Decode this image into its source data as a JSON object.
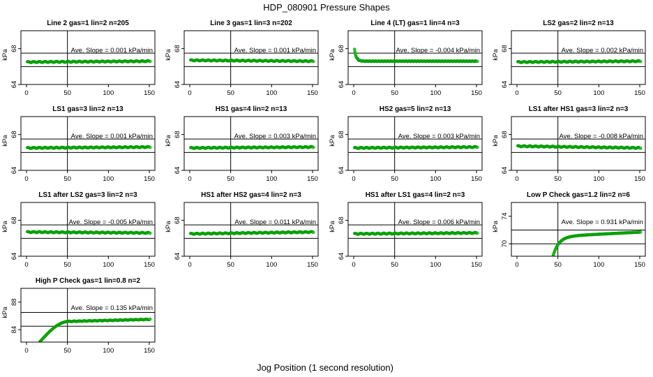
{
  "figure": {
    "title": "HDP_080901  Pressure Shapes",
    "xlabel": "Jog Position (1 second resolution)"
  },
  "colors": {
    "points": "#22cc22",
    "point_edge": "#009900",
    "axes": "#000000"
  },
  "chart_data": [
    {
      "type": "scatter",
      "title": "Line 2 gas=1 lin=2 n=205",
      "ylabel": "kPa",
      "xlim": [
        0,
        150
      ],
      "ylim": [
        64,
        70
      ],
      "xticks": [
        "0",
        "50",
        "100",
        "150"
      ],
      "yticks": [
        "64",
        "68"
      ],
      "hlines": [
        66,
        67.5
      ],
      "vline": 50,
      "annotation": "Ave. Slope =  0.001  kPa/min",
      "profile": {
        "kind": "flat",
        "start": 1,
        "end": 151,
        "y0": 66.5,
        "y1": 66.6
      }
    },
    {
      "type": "scatter",
      "title": "Line 3 gas=1 lin=3 n=202",
      "ylabel": "kPa",
      "xlim": [
        0,
        150
      ],
      "ylim": [
        64,
        70
      ],
      "xticks": [
        "0",
        "50",
        "100",
        "150"
      ],
      "yticks": [
        "64",
        "68"
      ],
      "hlines": [
        66,
        67.5
      ],
      "vline": 50,
      "annotation": "Ave. Slope =  0.001  kPa/min",
      "profile": {
        "kind": "flat",
        "start": 1,
        "end": 151,
        "y0": 66.7,
        "y1": 66.6
      }
    },
    {
      "type": "scatter",
      "title": "Line 4 (LT) gas=1 lin=4 n=3",
      "ylabel": "kPa",
      "xlim": [
        0,
        150
      ],
      "ylim": [
        64,
        70
      ],
      "xticks": [
        "0",
        "50",
        "100",
        "150"
      ],
      "yticks": [
        "64",
        "68"
      ],
      "hlines": [
        66,
        67.5
      ],
      "vline": 50,
      "annotation": "Ave. Slope =  -0.004  kPa/min",
      "profile": {
        "kind": "drop",
        "start": 1,
        "end": 151,
        "y0": 67.9,
        "y1": 66.6
      }
    },
    {
      "type": "scatter",
      "title": "LS2 gas=2 lin=2 n=13",
      "ylabel": "kPa",
      "xlim": [
        0,
        150
      ],
      "ylim": [
        64,
        70
      ],
      "xticks": [
        "0",
        "50",
        "100",
        "150"
      ],
      "yticks": [
        "64",
        "68"
      ],
      "hlines": [
        66,
        67.5
      ],
      "vline": 50,
      "annotation": "Ave. Slope =  0.002  kPa/min",
      "profile": {
        "kind": "flat",
        "start": 1,
        "end": 151,
        "y0": 66.5,
        "y1": 66.6
      }
    },
    {
      "type": "scatter",
      "title": "LS1 gas=3 lin=2 n=13",
      "ylabel": "kPa",
      "xlim": [
        0,
        150
      ],
      "ylim": [
        64,
        70
      ],
      "xticks": [
        "0",
        "50",
        "100",
        "150"
      ],
      "yticks": [
        "64",
        "68"
      ],
      "hlines": [
        66,
        67.5
      ],
      "vline": 50,
      "annotation": "Ave. Slope =  0.001  kPa/min",
      "profile": {
        "kind": "flat",
        "start": 1,
        "end": 151,
        "y0": 66.5,
        "y1": 66.6
      }
    },
    {
      "type": "scatter",
      "title": "HS1 gas=4 lin=2 n=13",
      "ylabel": "kPa",
      "xlim": [
        0,
        150
      ],
      "ylim": [
        64,
        70
      ],
      "xticks": [
        "0",
        "50",
        "100",
        "150"
      ],
      "yticks": [
        "64",
        "68"
      ],
      "hlines": [
        66,
        67.5
      ],
      "vline": 50,
      "annotation": "Ave. Slope =  0.003  kPa/min",
      "profile": {
        "kind": "flat",
        "start": 1,
        "end": 151,
        "y0": 66.5,
        "y1": 66.6
      }
    },
    {
      "type": "scatter",
      "title": "HS2 gas=5 lin=2 n=13",
      "ylabel": "kPa",
      "xlim": [
        0,
        150
      ],
      "ylim": [
        64,
        70
      ],
      "xticks": [
        "0",
        "50",
        "100",
        "150"
      ],
      "yticks": [
        "64",
        "68"
      ],
      "hlines": [
        66,
        67.5
      ],
      "vline": 50,
      "annotation": "Ave. Slope =  0.003  kPa/min",
      "profile": {
        "kind": "flat",
        "start": 1,
        "end": 151,
        "y0": 66.5,
        "y1": 66.6
      }
    },
    {
      "type": "scatter",
      "title": "LS1 after HS1 gas=3 lin=2 n=3",
      "ylabel": "kPa",
      "xlim": [
        0,
        150
      ],
      "ylim": [
        64,
        70
      ],
      "xticks": [
        "0",
        "50",
        "100",
        "150"
      ],
      "yticks": [
        "64",
        "68"
      ],
      "hlines": [
        66,
        67.5
      ],
      "vline": 50,
      "annotation": "Ave. Slope =  -0.008  kPa/min",
      "profile": {
        "kind": "flat",
        "start": 1,
        "end": 151,
        "y0": 66.7,
        "y1": 66.5
      }
    },
    {
      "type": "scatter",
      "title": "LS1 after LS2 gas=3 lin=2 n=3",
      "ylabel": "kPa",
      "xlim": [
        0,
        150
      ],
      "ylim": [
        64,
        70
      ],
      "xticks": [
        "0",
        "50",
        "100",
        "150"
      ],
      "yticks": [
        "64",
        "68"
      ],
      "hlines": [
        66,
        67.5
      ],
      "vline": 50,
      "annotation": "Ave. Slope =  -0.005  kPa/min",
      "profile": {
        "kind": "flat",
        "start": 1,
        "end": 151,
        "y0": 66.7,
        "y1": 66.6
      }
    },
    {
      "type": "scatter",
      "title": "HS1 after HS2 gas=4 lin=2 n=3",
      "ylabel": "kPa",
      "xlim": [
        0,
        150
      ],
      "ylim": [
        64,
        70
      ],
      "xticks": [
        "0",
        "50",
        "100",
        "150"
      ],
      "yticks": [
        "64",
        "68"
      ],
      "hlines": [
        66,
        67.5
      ],
      "vline": 50,
      "annotation": "Ave. Slope =  0.011  kPa/min",
      "profile": {
        "kind": "flat",
        "start": 1,
        "end": 151,
        "y0": 66.5,
        "y1": 66.7
      }
    },
    {
      "type": "scatter",
      "title": "HS1 after LS1 gas=4 lin=2 n=3",
      "ylabel": "kPa",
      "xlim": [
        0,
        150
      ],
      "ylim": [
        64,
        70
      ],
      "xticks": [
        "0",
        "50",
        "100",
        "150"
      ],
      "yticks": [
        "64",
        "68"
      ],
      "hlines": [
        66,
        67.5
      ],
      "vline": 50,
      "annotation": "Ave. Slope =  0.006  kPa/min",
      "profile": {
        "kind": "flat",
        "start": 1,
        "end": 151,
        "y0": 66.5,
        "y1": 66.6
      }
    },
    {
      "type": "scatter",
      "title": "Low P Check gas=1.2 lin=2 n=6",
      "ylabel": "kPa",
      "xlim": [
        0,
        150
      ],
      "ylim": [
        68.2,
        76
      ],
      "xticks": [
        "0",
        "50",
        "100",
        "150"
      ],
      "yticks": [
        "70",
        "74"
      ],
      "hlines": [
        70,
        72
      ],
      "vline": 50,
      "annotation": "Ave. Slope =  0.931  kPa/min",
      "profile": {
        "kind": "rise",
        "start": 44,
        "end": 151,
        "y0": 68.2,
        "y1": 71.7
      }
    },
    {
      "type": "scatter",
      "title": "High P Check gas=1 lin=0.8 n=2",
      "ylabel": "kPa",
      "xlim": [
        0,
        150
      ],
      "ylim": [
        82.2,
        90
      ],
      "xticks": [
        "0",
        "50",
        "100",
        "150"
      ],
      "yticks": [
        "84",
        "88"
      ],
      "hlines": [
        84.5,
        86.5
      ],
      "vline": 50,
      "annotation": "Ave. Slope =  0.135  kPa/min",
      "profile": {
        "kind": "ramp",
        "start": 16,
        "end": 151,
        "y0": 82.2,
        "y1": 85.5
      }
    }
  ]
}
